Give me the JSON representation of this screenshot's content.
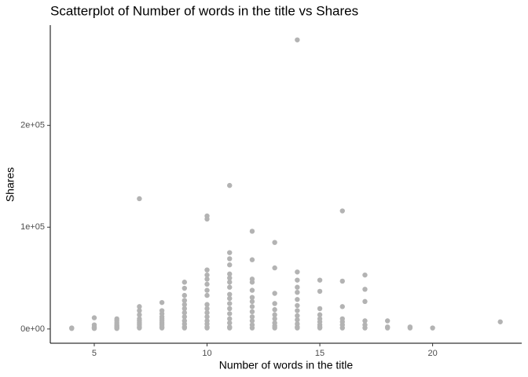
{
  "chart_data": {
    "type": "scatter",
    "title": "Scatterplot of Number of words in the title vs Shares",
    "x_label": "Number of words in the title",
    "y_label": "Shares",
    "color": "#b3b3b3",
    "xlim": [
      3.05,
      23.95
    ],
    "ylim": [
      -14000,
      298500
    ],
    "xticks": [
      5,
      10,
      15,
      20
    ],
    "yticks": [
      {
        "value": 0,
        "label": "0e+00"
      },
      {
        "value": 100000,
        "label": "1e+05"
      },
      {
        "value": 200000,
        "label": "2e+05"
      }
    ],
    "x": [
      4,
      4,
      5,
      5,
      5,
      5,
      5,
      6,
      6,
      6,
      6,
      6,
      6,
      6,
      6,
      7,
      7,
      7,
      7,
      7,
      7,
      7,
      7,
      7,
      7,
      8,
      8,
      8,
      8,
      8,
      8,
      8,
      8,
      8,
      8,
      9,
      9,
      9,
      9,
      9,
      9,
      9,
      9,
      9,
      9,
      9,
      9,
      10,
      10,
      10,
      10,
      10,
      10,
      10,
      10,
      10,
      10,
      10,
      10,
      10,
      10,
      10,
      10,
      11,
      11,
      11,
      11,
      11,
      11,
      11,
      11,
      11,
      11,
      11,
      11,
      11,
      11,
      11,
      11,
      11,
      12,
      12,
      12,
      12,
      12,
      12,
      12,
      12,
      12,
      12,
      12,
      12,
      12,
      13,
      13,
      13,
      13,
      13,
      13,
      13,
      13,
      13,
      13,
      14,
      14,
      14,
      14,
      14,
      14,
      14,
      14,
      14,
      14,
      14,
      14,
      14,
      15,
      15,
      15,
      15,
      15,
      15,
      15,
      15,
      15,
      16,
      16,
      16,
      16,
      16,
      16,
      16,
      17,
      17,
      17,
      17,
      17,
      17,
      18,
      18,
      18,
      19,
      19,
      20,
      23
    ],
    "y": [
      1000,
      500,
      11000,
      4000,
      2000,
      1000,
      500,
      10000,
      8000,
      6000,
      4000,
      3000,
      2000,
      1000,
      500,
      128000,
      22000,
      18000,
      14000,
      10000,
      8000,
      6000,
      4000,
      2000,
      1000,
      26000,
      18000,
      15000,
      12000,
      10000,
      8000,
      6000,
      4000,
      2000,
      1000,
      46000,
      40000,
      33000,
      28000,
      24000,
      20000,
      16000,
      12000,
      8000,
      5000,
      2000,
      1000,
      111000,
      108000,
      58000,
      53000,
      49000,
      44000,
      38000,
      33000,
      24000,
      20000,
      16000,
      12000,
      8000,
      5000,
      2000,
      1000,
      141000,
      75000,
      69000,
      63000,
      54000,
      50000,
      46000,
      41000,
      34000,
      30000,
      25000,
      20000,
      15000,
      10000,
      6000,
      2000,
      1000,
      96000,
      68000,
      49000,
      46000,
      38000,
      31000,
      27000,
      22000,
      17000,
      12000,
      8000,
      4000,
      1000,
      85000,
      60000,
      35000,
      25000,
      19000,
      14000,
      10000,
      6000,
      3000,
      1000,
      284000,
      56000,
      48000,
      41000,
      36000,
      29000,
      23000,
      18000,
      13000,
      9000,
      5000,
      2000,
      1000,
      48000,
      37000,
      20000,
      14000,
      10000,
      7000,
      4000,
      2000,
      1000,
      116000,
      47000,
      22000,
      10000,
      7000,
      4000,
      1000,
      53000,
      39000,
      27000,
      8000,
      4000,
      1000,
      8000,
      2000,
      1000,
      2000,
      1000,
      1000,
      7000
    ]
  }
}
